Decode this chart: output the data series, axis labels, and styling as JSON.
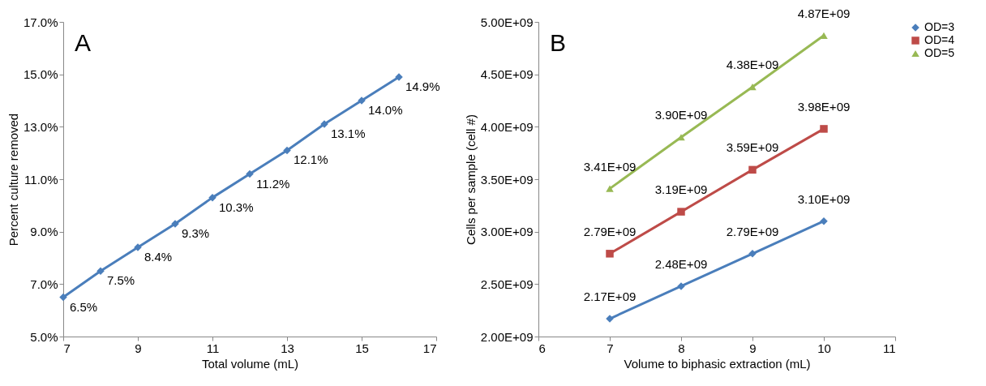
{
  "chart_data": [
    {
      "type": "line",
      "title": "A",
      "xlabel": "Total volume (mL)",
      "ylabel": "Percent culture removed",
      "x": [
        7,
        8,
        9,
        10,
        11,
        12,
        13,
        14,
        15,
        16
      ],
      "values": [
        6.5,
        7.5,
        8.4,
        9.3,
        10.3,
        11.2,
        12.1,
        13.1,
        14.0,
        14.9
      ],
      "value_labels": [
        "6.5%",
        "7.5%",
        "8.4%",
        "9.3%",
        "10.3%",
        "11.2%",
        "12.1%",
        "13.1%",
        "14.0%",
        "14.9%"
      ],
      "color": "#4a7ebb",
      "marker": "diamond",
      "xlim": [
        7,
        17
      ],
      "xticks": [
        7,
        9,
        11,
        13,
        15,
        17
      ],
      "ylim": [
        5,
        17
      ],
      "yticks": [
        {
          "value": 5,
          "label": "5.0%"
        },
        {
          "value": 7,
          "label": "7.0%"
        },
        {
          "value": 9,
          "label": "9.0%"
        },
        {
          "value": 11,
          "label": "11.0%"
        },
        {
          "value": 13,
          "label": "13.0%"
        },
        {
          "value": 15,
          "label": "15.0%"
        },
        {
          "value": 17,
          "label": "17.0%"
        }
      ]
    },
    {
      "type": "line",
      "title": "B",
      "xlabel": "Volume to biphasic extraction (mL)",
      "ylabel": "Cells per sample (cell #)",
      "x": [
        7,
        8,
        9,
        10
      ],
      "series": [
        {
          "name": "OD=3",
          "color": "#4a7ebb",
          "marker": "diamond",
          "values": [
            2170000000,
            2480000000,
            2790000000,
            3100000000
          ],
          "value_labels": [
            "2.17E+09",
            "2.48E+09",
            "2.79E+09",
            "3.10E+09"
          ]
        },
        {
          "name": "OD=4",
          "color": "#be4b48",
          "marker": "square",
          "values": [
            2790000000,
            3190000000,
            3590000000,
            3980000000
          ],
          "value_labels": [
            "2.79E+09",
            "3.19E+09",
            "3.59E+09",
            "3.98E+09"
          ]
        },
        {
          "name": "OD=5",
          "color": "#98b954",
          "marker": "triangle",
          "values": [
            3410000000,
            3900000000,
            4380000000,
            4870000000
          ],
          "value_labels": [
            "3.41E+09",
            "3.90E+09",
            "4.38E+09",
            "4.87E+09"
          ]
        }
      ],
      "legend": "right",
      "xlim": [
        6,
        11
      ],
      "xticks": [
        6,
        7,
        8,
        9,
        10,
        11
      ],
      "ylim": [
        2000000000,
        5000000000
      ],
      "yticks": [
        {
          "value": 2000000000,
          "label": "2.00E+09"
        },
        {
          "value": 2500000000,
          "label": "2.50E+09"
        },
        {
          "value": 3000000000,
          "label": "3.00E+09"
        },
        {
          "value": 3500000000,
          "label": "3.50E+09"
        },
        {
          "value": 4000000000,
          "label": "4.00E+09"
        },
        {
          "value": 4500000000,
          "label": "4.50E+09"
        },
        {
          "value": 5000000000,
          "label": "5.00E+09"
        }
      ]
    }
  ]
}
